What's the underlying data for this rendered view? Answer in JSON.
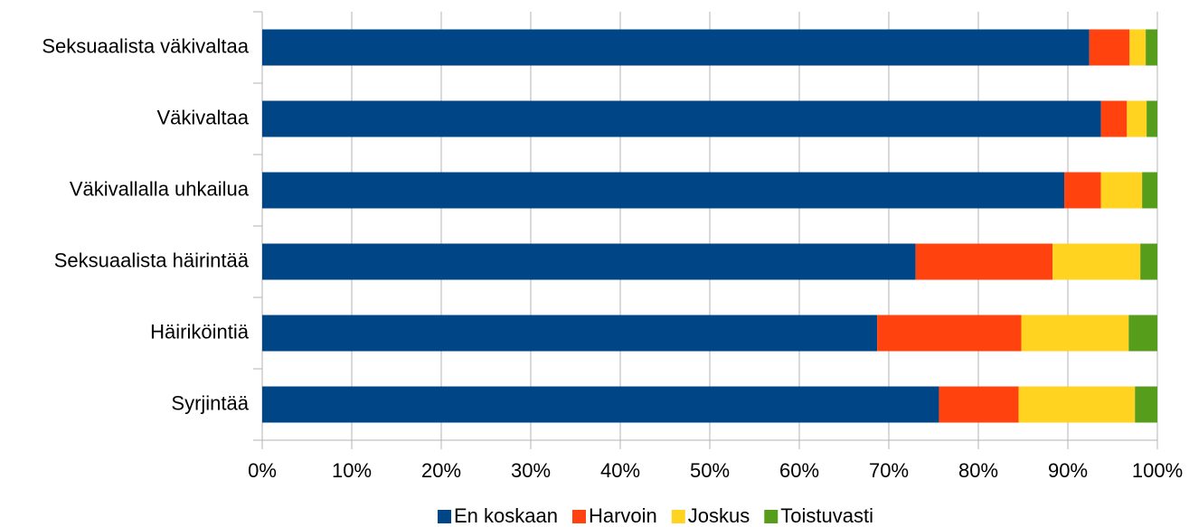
{
  "chart_data": {
    "type": "stacked-bar-horizontal",
    "categories": [
      "Seksuaalista väkivaltaa",
      "Väkivaltaa",
      "Väkivallalla uhkailua",
      "Seksuaalista häirintää",
      "Häiriköintiä",
      "Syrjintää"
    ],
    "series": [
      {
        "name": "En koskaan",
        "color": "#004586",
        "values": [
          92.4,
          93.7,
          89.6,
          73.0,
          68.7,
          75.6
        ]
      },
      {
        "name": "Harvoin",
        "color": "#ff420e",
        "values": [
          4.5,
          2.9,
          4.1,
          15.3,
          16.1,
          8.9
        ]
      },
      {
        "name": "Joskus",
        "color": "#ffd320",
        "values": [
          1.8,
          2.2,
          4.6,
          9.8,
          12.0,
          13.0
        ]
      },
      {
        "name": "Toistuvasti",
        "color": "#579d1c",
        "values": [
          1.3,
          1.2,
          1.7,
          1.9,
          3.2,
          2.5
        ]
      }
    ],
    "xlim": [
      0,
      100
    ],
    "xticks": [
      {
        "value": 0,
        "label": "0%"
      },
      {
        "value": 10,
        "label": "10%"
      },
      {
        "value": 20,
        "label": "20%"
      },
      {
        "value": 30,
        "label": "30%"
      },
      {
        "value": 40,
        "label": "40%"
      },
      {
        "value": 50,
        "label": "50%"
      },
      {
        "value": 60,
        "label": "60%"
      },
      {
        "value": 70,
        "label": "70%"
      },
      {
        "value": 80,
        "label": "80%"
      },
      {
        "value": 90,
        "label": "90%"
      },
      {
        "value": 100,
        "label": "100%"
      }
    ],
    "grid": true,
    "legend": "bottom"
  }
}
